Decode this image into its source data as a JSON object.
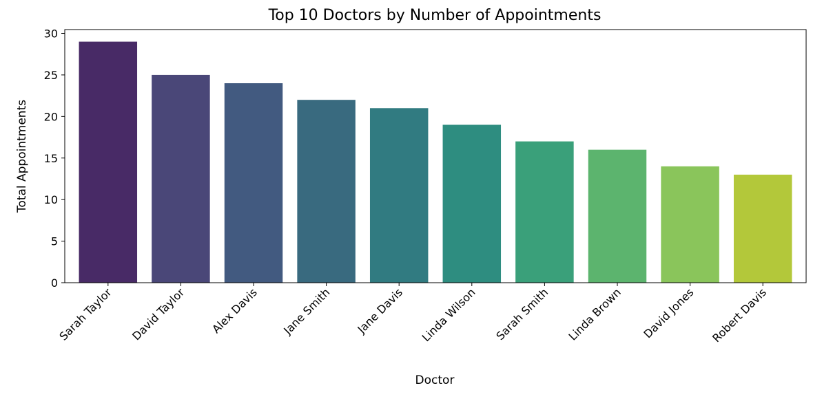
{
  "chart_data": {
    "type": "bar",
    "title": "Top 10 Doctors by Number of Appointments",
    "xlabel": "Doctor",
    "ylabel": "Total Appointments",
    "categories": [
      "Sarah Taylor",
      "David Taylor",
      "Alex Davis",
      "Jane Smith",
      "Jane Davis",
      "Linda Wilson",
      "Sarah Smith",
      "Linda Brown",
      "David Jones",
      "Robert Davis"
    ],
    "values": [
      29,
      25,
      24,
      22,
      21,
      19,
      17,
      16,
      14,
      13
    ],
    "colors": [
      "#482a66",
      "#4a4778",
      "#425a80",
      "#396a7f",
      "#317b81",
      "#2e8d80",
      "#3aa07a",
      "#5cb46e",
      "#8ac55b",
      "#b3c83a"
    ],
    "ylim": [
      0,
      30
    ],
    "yticks": [
      0,
      5,
      10,
      15,
      20,
      25,
      30
    ],
    "x_tick_rotation": "45 degrees",
    "grid": false,
    "legend": "none"
  }
}
